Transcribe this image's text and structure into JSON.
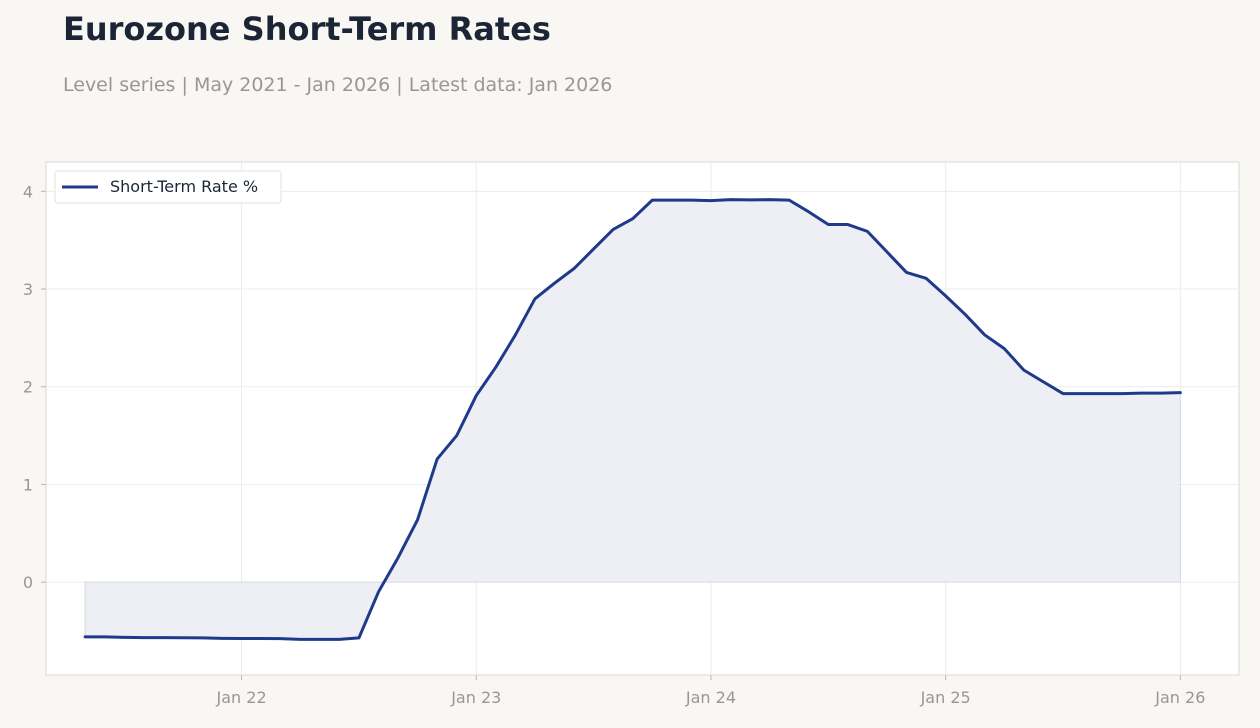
{
  "title": "Eurozone Short-Term Rates",
  "subtitle": "Level series | May 2021 - Jan 2026 | Latest data: Jan 2026",
  "colors": {
    "background": "#f8f7f4",
    "plot_background": "#ffffff",
    "line": "#1f3a8a",
    "fill": "#eceef4",
    "grid": "#ececec",
    "frame": "#dcdad2",
    "tick_text": "#9a9792"
  },
  "chart_data": {
    "type": "area",
    "title": "Eurozone Short-Term Rates",
    "xlabel": "",
    "ylabel": "",
    "x_ticks": [
      "Jan 22",
      "Jan 23",
      "Jan 24",
      "Jan 25",
      "Jan 26"
    ],
    "y_ticks": [
      0,
      1,
      2,
      3,
      4
    ],
    "xlim": [
      "2021-03-01",
      "2026-04-01"
    ],
    "ylim": [
      -0.95,
      4.3
    ],
    "grid": true,
    "legend_position": "top-left",
    "series": [
      {
        "name": "Short-Term Rate %",
        "x": [
          "2021-05",
          "2021-06",
          "2021-07",
          "2021-08",
          "2021-09",
          "2021-10",
          "2021-11",
          "2021-12",
          "2022-01",
          "2022-02",
          "2022-03",
          "2022-04",
          "2022-05",
          "2022-06",
          "2022-07",
          "2022-08",
          "2022-09",
          "2022-10",
          "2022-11",
          "2022-12",
          "2023-01",
          "2023-02",
          "2023-03",
          "2023-04",
          "2023-05",
          "2023-06",
          "2023-07",
          "2023-08",
          "2023-09",
          "2023-10",
          "2023-11",
          "2023-12",
          "2024-01",
          "2024-02",
          "2024-03",
          "2024-04",
          "2024-05",
          "2024-06",
          "2024-07",
          "2024-08",
          "2024-09",
          "2024-10",
          "2024-11",
          "2024-12",
          "2025-01",
          "2025-02",
          "2025-03",
          "2025-04",
          "2025-05",
          "2025-06",
          "2025-07",
          "2025-08",
          "2025-09",
          "2025-10",
          "2025-11",
          "2025-12",
          "2026-01"
        ],
        "values": [
          -0.56,
          -0.56,
          -0.565,
          -0.567,
          -0.568,
          -0.569,
          -0.57,
          -0.575,
          -0.577,
          -0.576,
          -0.578,
          -0.585,
          -0.586,
          -0.585,
          -0.57,
          -0.1,
          0.25,
          0.64,
          1.26,
          1.5,
          1.91,
          2.2,
          2.53,
          2.9,
          3.06,
          3.21,
          3.41,
          3.61,
          3.72,
          3.91,
          3.91,
          3.91,
          3.905,
          3.915,
          3.913,
          3.915,
          3.91,
          3.79,
          3.66,
          3.66,
          3.59,
          3.38,
          3.17,
          3.11,
          2.93,
          2.74,
          2.53,
          2.39,
          2.17,
          2.05,
          1.93,
          1.93,
          1.93,
          1.93,
          1.935,
          1.935,
          1.94
        ]
      }
    ]
  }
}
